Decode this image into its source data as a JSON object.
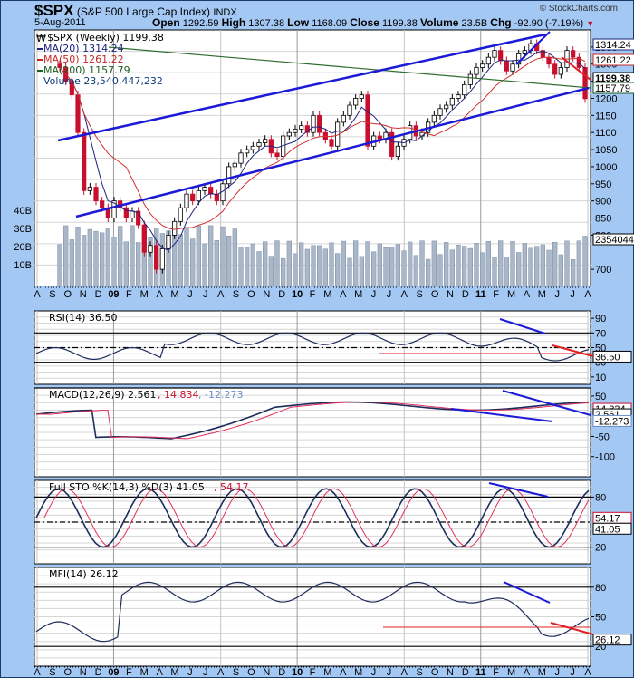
{
  "header": {
    "symbol": "$SPX",
    "name": "(S&P 500 Large Cap Index)",
    "exchange": "INDX",
    "date": "5-Aug-2011",
    "copyright": "© StockCharts.com",
    "open_label": "Open",
    "open": "1292.59",
    "high_label": "High",
    "high": "1307.38",
    "low_label": "Low",
    "low": "1168.09",
    "close_label": "Close",
    "close": "1199.38",
    "volume_label": "Volume",
    "volume": "23.5B",
    "chg_label": "Chg",
    "chg": "-92.90 (-7.19%)"
  },
  "price_panel": {
    "legend": [
      {
        "text": "$SPX (Weekly) 1199.38",
        "color": "#000000"
      },
      {
        "text": "MA(20) 1314.24",
        "color": "#1a237e"
      },
      {
        "text": "MA(50) 1261.22",
        "color": "#c62828"
      },
      {
        "text": "MA(200) 1157.79",
        "color": "#1b5e20"
      },
      {
        "text": "Volume 23,540,447,232",
        "color": "#0d3c7a"
      }
    ],
    "right_ticks": [
      "1350",
      "1300",
      "1250",
      "1200",
      "1150",
      "1100",
      "1050",
      "1000",
      "950",
      "900",
      "850",
      "800",
      "700"
    ],
    "right_badges": [
      {
        "text": "1314.24",
        "color": "#1a237e"
      },
      {
        "text": "1261.22",
        "color": "#c62828"
      },
      {
        "text": "1199.38",
        "color": "#000000"
      },
      {
        "text": "1157.79",
        "color": "#1b5e20"
      },
      {
        "text": "2354044",
        "color": "#000000"
      }
    ],
    "volume_ticks": [
      "40B",
      "30B",
      "20B",
      "10B"
    ]
  },
  "months": [
    "A",
    "S",
    "O",
    "N",
    "D",
    "09",
    "F",
    "M",
    "A",
    "M",
    "J",
    "J",
    "A",
    "S",
    "O",
    "N",
    "D",
    "10",
    "F",
    "M",
    "A",
    "M",
    "J",
    "J",
    "A",
    "S",
    "O",
    "N",
    "D",
    "11",
    "F",
    "M",
    "A",
    "M",
    "J",
    "J",
    "A"
  ],
  "rsi_panel": {
    "title": "RSI(14) 36.50",
    "ticks": [
      "90",
      "70",
      "50",
      "30",
      "10"
    ],
    "badge": "36.50"
  },
  "macd_panel": {
    "title_main": "MACD(12,26,9) 2.561",
    "title_signal": ", 14.834",
    "title_hist": ", -12.273",
    "ticks": [
      "50",
      "-50",
      "-100"
    ],
    "badges": [
      "14.834",
      "2.561",
      "-12.273"
    ]
  },
  "sto_panel": {
    "title_main": "Full STO %K(14,3) %D(3) 41.05",
    "title_d": ", 54.17",
    "ticks": [
      "80",
      "20"
    ],
    "badges": [
      "54.17",
      "41.05"
    ]
  },
  "mfi_panel": {
    "title": "MFI(14) 26.12",
    "ticks": [
      "80",
      "50",
      "20"
    ],
    "badge": "26.12"
  },
  "chart_data": {
    "type": "candlestick",
    "title": "$SPX (S&P 500 Large Cap Index) INDX - Weekly",
    "x_range": [
      "Aug 2008",
      "Aug 2011"
    ],
    "price": {
      "approx_weekly_close": [
        1290,
        1250,
        1210,
        1100,
        930,
        940,
        900,
        880,
        850,
        900,
        880,
        850,
        870,
        830,
        750,
        770,
        700,
        760,
        800,
        840,
        880,
        920,
        900,
        930,
        940,
        920,
        900,
        950,
        1000,
        1010,
        1040,
        1050,
        1060,
        1070,
        1080,
        1040,
        1030,
        1090,
        1100,
        1110,
        1120,
        1100,
        1150,
        1100,
        1080,
        1060,
        1130,
        1150,
        1180,
        1200,
        1210,
        1060,
        1090,
        1080,
        1100,
        1030,
        1060,
        1080,
        1120,
        1090,
        1100,
        1130,
        1150,
        1170,
        1180,
        1200,
        1210,
        1240,
        1270,
        1290,
        1300,
        1320,
        1340,
        1310,
        1280,
        1300,
        1330,
        1340,
        1360,
        1340,
        1320,
        1300,
        1270,
        1290,
        1340,
        1320,
        1290,
        1199
      ],
      "ma20_last": 1314.24,
      "ma50_last": 1261.22,
      "ma200_last": 1157.79,
      "last": 1199.38,
      "ylim": [
        650,
        1400
      ]
    },
    "volume": {
      "ylim_billions": [
        0,
        45
      ],
      "last": 23540447232
    },
    "rsi": {
      "period": 14,
      "last": 36.5,
      "ylim": [
        0,
        100
      ],
      "levels": [
        70,
        50,
        30
      ]
    },
    "macd": {
      "fast": 12,
      "slow": 26,
      "signal": 9,
      "macd": 2.561,
      "signal_value": 14.834,
      "histogram": -12.273,
      "ylim": [
        -150,
        70
      ]
    },
    "stochastic": {
      "k": 41.05,
      "d": 54.17,
      "ylim": [
        0,
        100
      ],
      "levels": [
        80,
        50,
        20
      ]
    },
    "mfi": {
      "period": 14,
      "last": 26.12,
      "ylim": [
        0,
        100
      ],
      "levels": [
        80,
        20
      ]
    },
    "annotations": [
      "Upward price channel (blue)",
      "Bearish divergence trendlines on RSI, MACD, STO, MFI (blue)",
      "Support trendlines (red)"
    ]
  }
}
